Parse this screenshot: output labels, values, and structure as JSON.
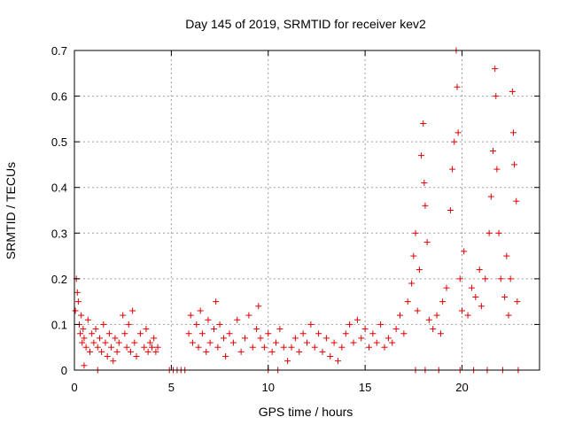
{
  "chart_data": {
    "type": "scatter",
    "title": "Day 145 of 2019, SRMTID for receiver kev2",
    "xlabel": "GPS time / hours",
    "ylabel": "SRMTID / TECUs",
    "xlim": [
      0,
      24
    ],
    "ylim": [
      0,
      0.7
    ],
    "xticks": [
      0,
      5,
      10,
      15,
      20
    ],
    "xtick_labels": [
      "0",
      "5",
      "10",
      "15",
      "20"
    ],
    "yticks": [
      0,
      0.1,
      0.2,
      0.3,
      0.4,
      0.5,
      0.6,
      0.7
    ],
    "ytick_labels": [
      "0",
      "0.1",
      "0.2",
      "0.3",
      "0.4",
      "0.5",
      "0.6",
      "0.7"
    ],
    "grid": true,
    "marker": "+",
    "color": "#e00000",
    "series": [
      {
        "name": "kev2",
        "points": [
          [
            0.05,
            0.13
          ],
          [
            0.1,
            0.2
          ],
          [
            0.15,
            0.17
          ],
          [
            0.2,
            0.15
          ],
          [
            0.25,
            0.1
          ],
          [
            0.3,
            0.08
          ],
          [
            0.35,
            0.12
          ],
          [
            0.4,
            0.06
          ],
          [
            0.45,
            0.09
          ],
          [
            0.5,
            0.07
          ],
          [
            0.6,
            0.05
          ],
          [
            0.7,
            0.11
          ],
          [
            0.8,
            0.04
          ],
          [
            0.9,
            0.08
          ],
          [
            1.0,
            0.06
          ],
          [
            1.1,
            0.09
          ],
          [
            1.2,
            0.05
          ],
          [
            1.3,
            0.07
          ],
          [
            1.4,
            0.04
          ],
          [
            1.5,
            0.1
          ],
          [
            1.6,
            0.06
          ],
          [
            1.7,
            0.03
          ],
          [
            1.8,
            0.08
          ],
          [
            1.9,
            0.05
          ],
          [
            2.0,
            0.02
          ],
          [
            2.1,
            0.07
          ],
          [
            2.2,
            0.04
          ],
          [
            2.3,
            0.06
          ],
          [
            2.5,
            0.12
          ],
          [
            2.6,
            0.08
          ],
          [
            2.7,
            0.05
          ],
          [
            2.8,
            0.1
          ],
          [
            2.9,
            0.04
          ],
          [
            3.0,
            0.13
          ],
          [
            3.1,
            0.06
          ],
          [
            3.2,
            0.03
          ],
          [
            3.4,
            0.08
          ],
          [
            3.6,
            0.05
          ],
          [
            3.7,
            0.09
          ],
          [
            3.8,
            0.04
          ],
          [
            3.9,
            0.06
          ],
          [
            4.0,
            0.05
          ],
          [
            4.1,
            0.07
          ],
          [
            4.2,
            0.04
          ],
          [
            4.3,
            0.05
          ],
          [
            0.5,
            0.01
          ],
          [
            1.2,
            0.0
          ],
          [
            4.9,
            0.0
          ],
          [
            5.1,
            0.0
          ],
          [
            5.3,
            0.0
          ],
          [
            5.5,
            0.0
          ],
          [
            5.7,
            0.0
          ],
          [
            5.9,
            0.08
          ],
          [
            6.0,
            0.12
          ],
          [
            6.1,
            0.06
          ],
          [
            6.3,
            0.1
          ],
          [
            6.4,
            0.05
          ],
          [
            6.5,
            0.13
          ],
          [
            6.6,
            0.08
          ],
          [
            6.8,
            0.04
          ],
          [
            6.9,
            0.11
          ],
          [
            7.0,
            0.06
          ],
          [
            7.2,
            0.09
          ],
          [
            7.3,
            0.15
          ],
          [
            7.4,
            0.05
          ],
          [
            7.5,
            0.1
          ],
          [
            7.7,
            0.07
          ],
          [
            7.8,
            0.03
          ],
          [
            8.0,
            0.08
          ],
          [
            8.2,
            0.06
          ],
          [
            8.4,
            0.11
          ],
          [
            8.6,
            0.04
          ],
          [
            8.8,
            0.07
          ],
          [
            9.0,
            0.12
          ],
          [
            9.2,
            0.05
          ],
          [
            9.4,
            0.09
          ],
          [
            9.5,
            0.14
          ],
          [
            9.6,
            0.07
          ],
          [
            9.8,
            0.05
          ],
          [
            10.0,
            0.08
          ],
          [
            10.2,
            0.04
          ],
          [
            10.4,
            0.06
          ],
          [
            10.6,
            0.09
          ],
          [
            10.8,
            0.05
          ],
          [
            10.0,
            0.0
          ],
          [
            10.5,
            0.0
          ],
          [
            11.0,
            0.02
          ],
          [
            11.2,
            0.05
          ],
          [
            11.4,
            0.07
          ],
          [
            11.6,
            0.04
          ],
          [
            11.8,
            0.08
          ],
          [
            12.0,
            0.06
          ],
          [
            12.2,
            0.1
          ],
          [
            12.4,
            0.05
          ],
          [
            12.6,
            0.08
          ],
          [
            12.8,
            0.04
          ],
          [
            13.0,
            0.07
          ],
          [
            13.2,
            0.03
          ],
          [
            13.4,
            0.06
          ],
          [
            13.6,
            0.02
          ],
          [
            13.8,
            0.05
          ],
          [
            14.0,
            0.08
          ],
          [
            14.2,
            0.1
          ],
          [
            14.4,
            0.06
          ],
          [
            14.6,
            0.11
          ],
          [
            14.8,
            0.07
          ],
          [
            15.0,
            0.09
          ],
          [
            15.2,
            0.05
          ],
          [
            15.4,
            0.08
          ],
          [
            15.6,
            0.06
          ],
          [
            15.8,
            0.1
          ],
          [
            16.0,
            0.05
          ],
          [
            16.2,
            0.07
          ],
          [
            16.4,
            0.06
          ],
          [
            16.6,
            0.09
          ],
          [
            16.8,
            0.12
          ],
          [
            17.0,
            0.08
          ],
          [
            17.2,
            0.15
          ],
          [
            17.4,
            0.19
          ],
          [
            17.5,
            0.25
          ],
          [
            17.6,
            0.3
          ],
          [
            17.7,
            0.13
          ],
          [
            17.8,
            0.22
          ],
          [
            17.9,
            0.47
          ],
          [
            18.0,
            0.54
          ],
          [
            18.05,
            0.41
          ],
          [
            18.1,
            0.36
          ],
          [
            18.2,
            0.28
          ],
          [
            18.3,
            0.11
          ],
          [
            18.5,
            0.09
          ],
          [
            18.7,
            0.12
          ],
          [
            18.9,
            0.08
          ],
          [
            19.0,
            0.15
          ],
          [
            19.2,
            0.18
          ],
          [
            19.4,
            0.35
          ],
          [
            19.5,
            0.44
          ],
          [
            19.6,
            0.5
          ],
          [
            19.7,
            0.7
          ],
          [
            19.75,
            0.62
          ],
          [
            19.8,
            0.52
          ],
          [
            19.9,
            0.2
          ],
          [
            20.0,
            0.13
          ],
          [
            20.1,
            0.26
          ],
          [
            20.3,
            0.12
          ],
          [
            20.5,
            0.18
          ],
          [
            20.7,
            0.16
          ],
          [
            20.9,
            0.22
          ],
          [
            21.0,
            0.14
          ],
          [
            21.2,
            0.2
          ],
          [
            21.4,
            0.3
          ],
          [
            21.5,
            0.38
          ],
          [
            21.6,
            0.48
          ],
          [
            21.7,
            0.66
          ],
          [
            21.75,
            0.6
          ],
          [
            21.8,
            0.44
          ],
          [
            21.9,
            0.3
          ],
          [
            22.0,
            0.2
          ],
          [
            22.2,
            0.16
          ],
          [
            22.3,
            0.25
          ],
          [
            22.4,
            0.12
          ],
          [
            22.5,
            0.2
          ],
          [
            22.6,
            0.61
          ],
          [
            22.65,
            0.52
          ],
          [
            22.7,
            0.45
          ],
          [
            22.8,
            0.37
          ],
          [
            22.85,
            0.15
          ],
          [
            17.6,
            0.0
          ],
          [
            18.1,
            0.0
          ],
          [
            18.8,
            0.0
          ],
          [
            19.9,
            0.0
          ],
          [
            20.6,
            0.0
          ],
          [
            21.3,
            0.0
          ],
          [
            22.1,
            0.0
          ],
          [
            22.9,
            0.0
          ]
        ]
      }
    ]
  }
}
